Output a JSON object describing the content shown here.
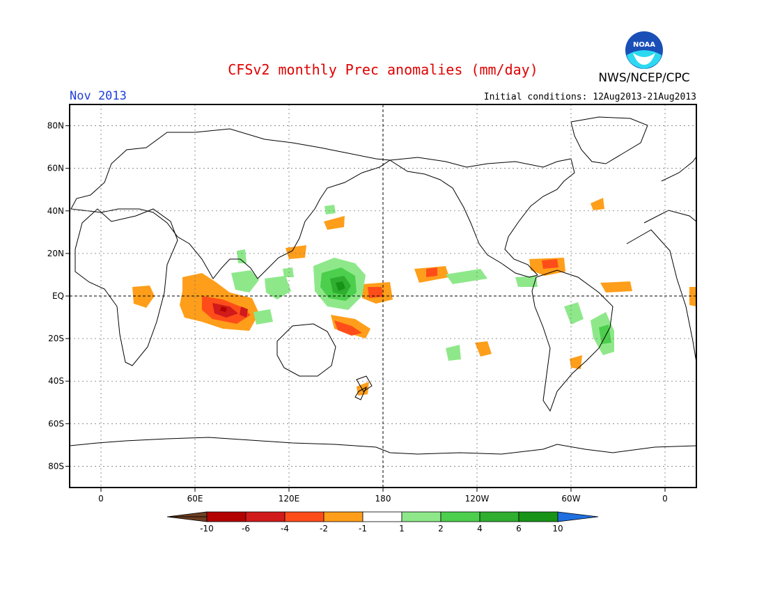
{
  "header": {
    "title": "CFSv2 monthly Prec anomalies (mm/day)",
    "month": "Nov 2013",
    "initial_conditions": "Initial conditions: 12Aug2013-21Aug2013",
    "agency": "NWS/NCEP/CPC",
    "logo_text": "NOAA"
  },
  "map": {
    "projection": "cylindrical equidistant",
    "lon_range": [
      -20,
      380
    ],
    "lat_range": [
      -90,
      90
    ],
    "lat_ticks": [
      {
        "lat": 80,
        "label": "80N"
      },
      {
        "lat": 60,
        "label": "60N"
      },
      {
        "lat": 40,
        "label": "40N"
      },
      {
        "lat": 20,
        "label": "20N"
      },
      {
        "lat": 0,
        "label": "EQ"
      },
      {
        "lat": -20,
        "label": "20S"
      },
      {
        "lat": -40,
        "label": "40S"
      },
      {
        "lat": -60,
        "label": "60S"
      },
      {
        "lat": -80,
        "label": "80S"
      }
    ],
    "lon_ticks": [
      {
        "lon": 0,
        "label": "0"
      },
      {
        "lon": 60,
        "label": "60E"
      },
      {
        "lon": 120,
        "label": "120E"
      },
      {
        "lon": 180,
        "label": "180"
      },
      {
        "lon": 240,
        "label": "120W"
      },
      {
        "lon": 300,
        "label": "60W"
      },
      {
        "lon": 360,
        "label": "0"
      }
    ],
    "grid": "dotted",
    "reference_lines": [
      "equator",
      "dateline"
    ]
  },
  "colorbar": {
    "labels": [
      "-10",
      "-6",
      "-4",
      "-2",
      "-1",
      "1",
      "2",
      "4",
      "6",
      "10"
    ],
    "colors": [
      "#6e3e22",
      "#b30000",
      "#d11a1a",
      "#ff4d1a",
      "#ff9e1a",
      "#ffffff",
      "#8ee88a",
      "#4ccf4c",
      "#2fae2f",
      "#179417",
      "#1f6fe0"
    ]
  },
  "chart_data": {
    "type": "heatmap",
    "variable": "precipitation anomaly (mm/day)",
    "features": [
      {
        "class": "-1",
        "lon": 265,
        "lat": 22
      },
      {
        "class": "-2",
        "lon": 70,
        "lat": 5
      },
      {
        "class": "-4",
        "lon": 75,
        "lat": -5
      },
      {
        "class": "-6",
        "lon": 88,
        "lat": -8
      },
      {
        "class": "-1",
        "lon": 80,
        "lat": -8
      },
      {
        "class": "-2",
        "lon": 160,
        "lat": -12
      },
      {
        "class": "-4",
        "lon": 165,
        "lat": -15
      },
      {
        "class": "-2",
        "lon": 175,
        "lat": 1
      },
      {
        "class": "-2",
        "lon": 285,
        "lat": 13
      },
      {
        "class": "-2",
        "lon": 310,
        "lat": 4
      },
      {
        "class": "2",
        "lon": 158,
        "lat": 5
      },
      {
        "class": "4",
        "lon": 158,
        "lat": 5
      },
      {
        "class": "6",
        "lon": 158,
        "lat": 5
      },
      {
        "class": "2",
        "lon": 105,
        "lat": 3
      },
      {
        "class": "2",
        "lon": 320,
        "lat": -15
      },
      {
        "class": "2",
        "lon": 295,
        "lat": -10
      },
      {
        "class": "2",
        "lon": 240,
        "lat": 8
      }
    ]
  }
}
